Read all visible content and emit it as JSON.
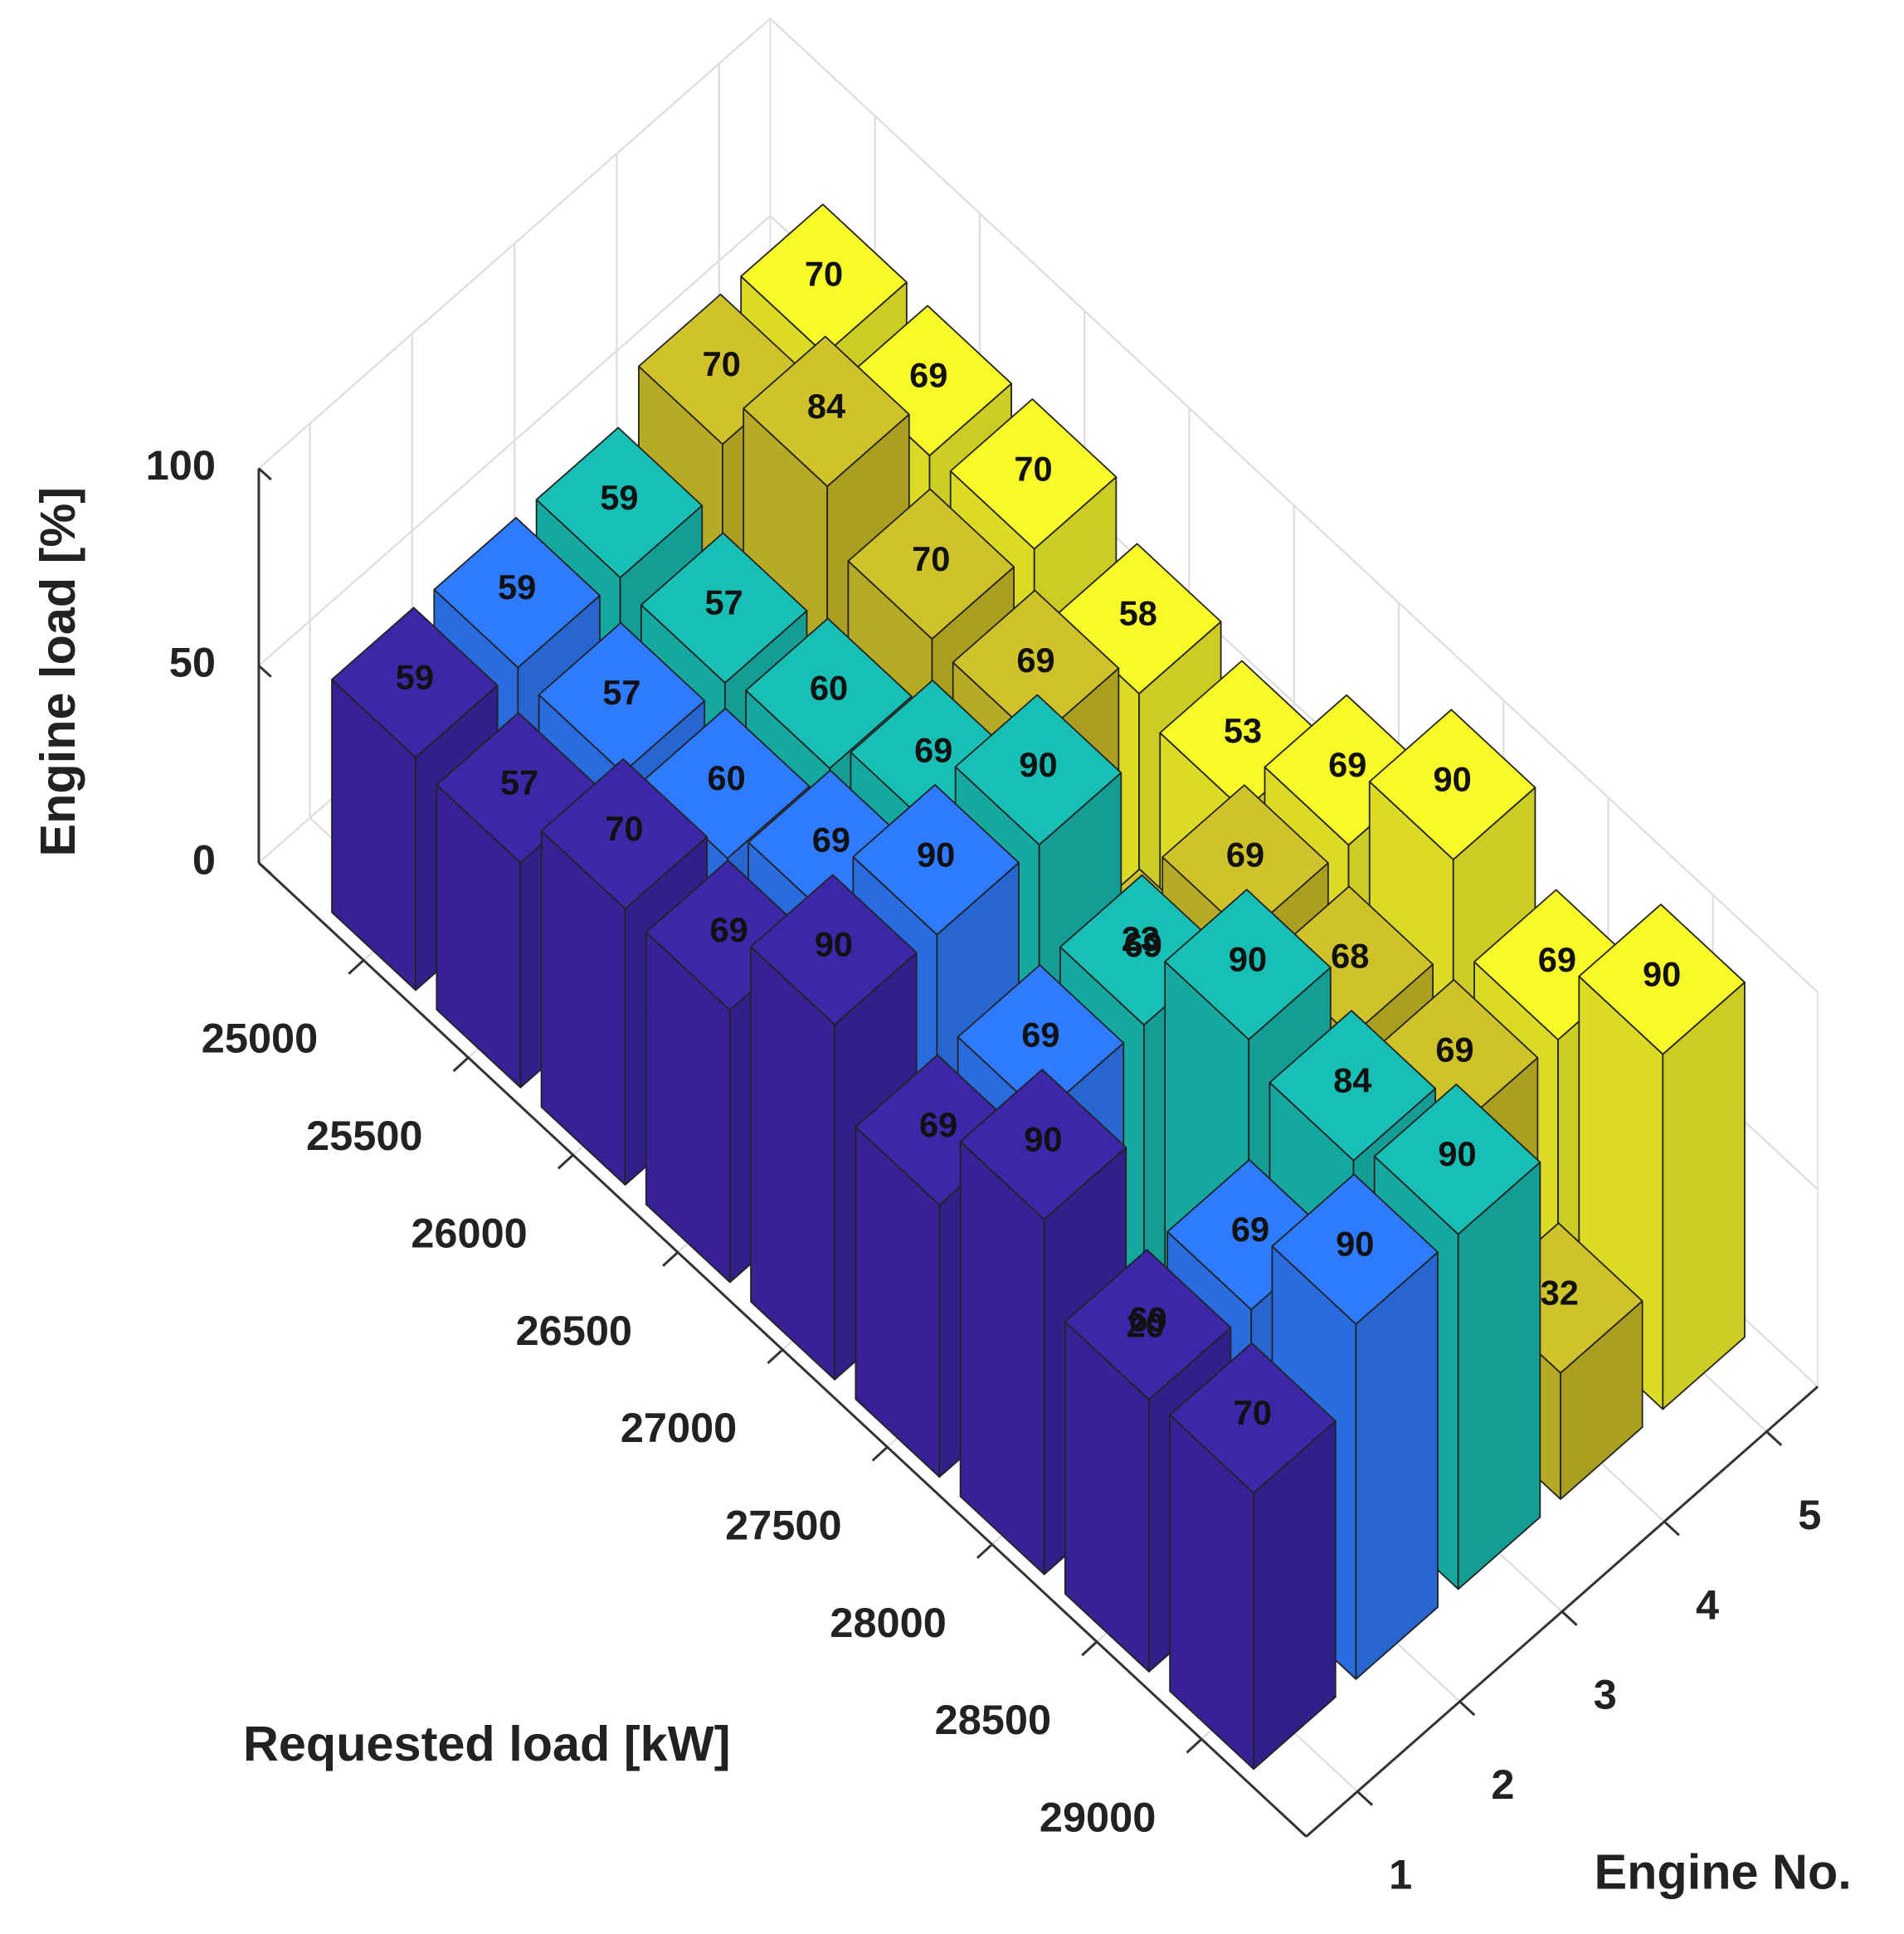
{
  "chart_data": {
    "type": "bar3d",
    "xlabel": "Requested load [kW]",
    "ylabel": "Engine No.",
    "zlabel": "Engine load [%]",
    "categories": [
      "25000",
      "25500",
      "26000",
      "26500",
      "27000",
      "27500",
      "28000",
      "28500",
      "29000"
    ],
    "engines": [
      1,
      2,
      3,
      4,
      5
    ],
    "zlim": [
      0,
      100
    ],
    "zticks": [
      0,
      50,
      100
    ],
    "grid": true,
    "series": [
      {
        "color": "#3e26a8",
        "values": [
          59,
          57,
          70,
          69,
          90,
          69,
          90,
          69,
          70
        ]
      },
      {
        "color": "#2f7bff",
        "values": [
          59,
          57,
          60,
          69,
          90,
          69,
          20,
          69,
          90
        ]
      },
      {
        "color": "#17bfb4",
        "values": [
          59,
          57,
          60,
          69,
          90,
          69,
          90,
          84,
          90
        ]
      },
      {
        "color": "#d0c22a",
        "values": [
          70,
          84,
          70,
          69,
          23,
          69,
          68,
          69,
          32
        ]
      },
      {
        "color": "#f9f92a",
        "values": [
          70,
          69,
          70,
          58,
          53,
          69,
          90,
          69,
          90
        ]
      }
    ]
  }
}
